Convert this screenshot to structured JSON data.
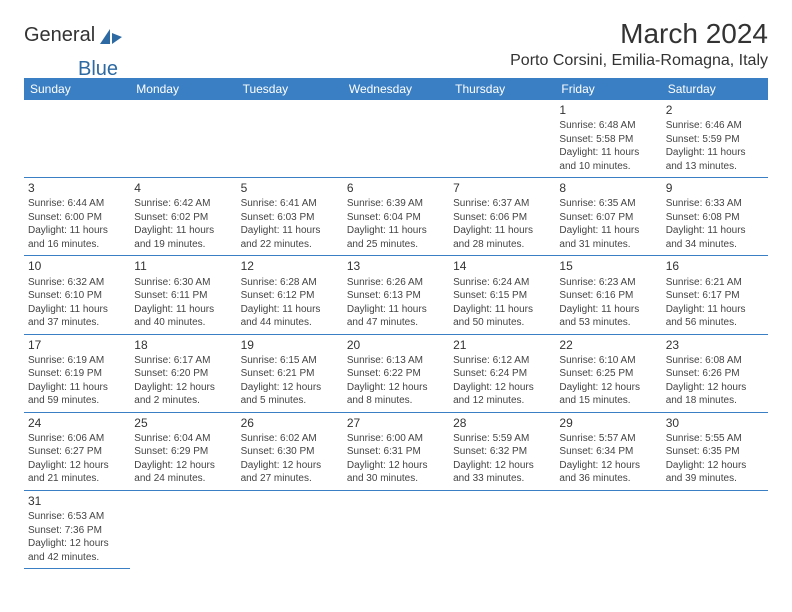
{
  "logo": {
    "text_general": "General",
    "text_blue": "Blue"
  },
  "header": {
    "month_title": "March 2024",
    "location": "Porto Corsini, Emilia-Romagna, Italy"
  },
  "colors": {
    "header_bg": "#3a7fc4",
    "header_fg": "#ffffff",
    "border": "#3a7fc4",
    "text": "#444444",
    "title": "#333333",
    "logo_blue": "#2d6aa3"
  },
  "weekdays": [
    "Sunday",
    "Monday",
    "Tuesday",
    "Wednesday",
    "Thursday",
    "Friday",
    "Saturday"
  ],
  "weeks": [
    [
      null,
      null,
      null,
      null,
      null,
      {
        "day": "1",
        "sunrise": "Sunrise: 6:48 AM",
        "sunset": "Sunset: 5:58 PM",
        "dl1": "Daylight: 11 hours",
        "dl2": "and 10 minutes."
      },
      {
        "day": "2",
        "sunrise": "Sunrise: 6:46 AM",
        "sunset": "Sunset: 5:59 PM",
        "dl1": "Daylight: 11 hours",
        "dl2": "and 13 minutes."
      }
    ],
    [
      {
        "day": "3",
        "sunrise": "Sunrise: 6:44 AM",
        "sunset": "Sunset: 6:00 PM",
        "dl1": "Daylight: 11 hours",
        "dl2": "and 16 minutes."
      },
      {
        "day": "4",
        "sunrise": "Sunrise: 6:42 AM",
        "sunset": "Sunset: 6:02 PM",
        "dl1": "Daylight: 11 hours",
        "dl2": "and 19 minutes."
      },
      {
        "day": "5",
        "sunrise": "Sunrise: 6:41 AM",
        "sunset": "Sunset: 6:03 PM",
        "dl1": "Daylight: 11 hours",
        "dl2": "and 22 minutes."
      },
      {
        "day": "6",
        "sunrise": "Sunrise: 6:39 AM",
        "sunset": "Sunset: 6:04 PM",
        "dl1": "Daylight: 11 hours",
        "dl2": "and 25 minutes."
      },
      {
        "day": "7",
        "sunrise": "Sunrise: 6:37 AM",
        "sunset": "Sunset: 6:06 PM",
        "dl1": "Daylight: 11 hours",
        "dl2": "and 28 minutes."
      },
      {
        "day": "8",
        "sunrise": "Sunrise: 6:35 AM",
        "sunset": "Sunset: 6:07 PM",
        "dl1": "Daylight: 11 hours",
        "dl2": "and 31 minutes."
      },
      {
        "day": "9",
        "sunrise": "Sunrise: 6:33 AM",
        "sunset": "Sunset: 6:08 PM",
        "dl1": "Daylight: 11 hours",
        "dl2": "and 34 minutes."
      }
    ],
    [
      {
        "day": "10",
        "sunrise": "Sunrise: 6:32 AM",
        "sunset": "Sunset: 6:10 PM",
        "dl1": "Daylight: 11 hours",
        "dl2": "and 37 minutes."
      },
      {
        "day": "11",
        "sunrise": "Sunrise: 6:30 AM",
        "sunset": "Sunset: 6:11 PM",
        "dl1": "Daylight: 11 hours",
        "dl2": "and 40 minutes."
      },
      {
        "day": "12",
        "sunrise": "Sunrise: 6:28 AM",
        "sunset": "Sunset: 6:12 PM",
        "dl1": "Daylight: 11 hours",
        "dl2": "and 44 minutes."
      },
      {
        "day": "13",
        "sunrise": "Sunrise: 6:26 AM",
        "sunset": "Sunset: 6:13 PM",
        "dl1": "Daylight: 11 hours",
        "dl2": "and 47 minutes."
      },
      {
        "day": "14",
        "sunrise": "Sunrise: 6:24 AM",
        "sunset": "Sunset: 6:15 PM",
        "dl1": "Daylight: 11 hours",
        "dl2": "and 50 minutes."
      },
      {
        "day": "15",
        "sunrise": "Sunrise: 6:23 AM",
        "sunset": "Sunset: 6:16 PM",
        "dl1": "Daylight: 11 hours",
        "dl2": "and 53 minutes."
      },
      {
        "day": "16",
        "sunrise": "Sunrise: 6:21 AM",
        "sunset": "Sunset: 6:17 PM",
        "dl1": "Daylight: 11 hours",
        "dl2": "and 56 minutes."
      }
    ],
    [
      {
        "day": "17",
        "sunrise": "Sunrise: 6:19 AM",
        "sunset": "Sunset: 6:19 PM",
        "dl1": "Daylight: 11 hours",
        "dl2": "and 59 minutes."
      },
      {
        "day": "18",
        "sunrise": "Sunrise: 6:17 AM",
        "sunset": "Sunset: 6:20 PM",
        "dl1": "Daylight: 12 hours",
        "dl2": "and 2 minutes."
      },
      {
        "day": "19",
        "sunrise": "Sunrise: 6:15 AM",
        "sunset": "Sunset: 6:21 PM",
        "dl1": "Daylight: 12 hours",
        "dl2": "and 5 minutes."
      },
      {
        "day": "20",
        "sunrise": "Sunrise: 6:13 AM",
        "sunset": "Sunset: 6:22 PM",
        "dl1": "Daylight: 12 hours",
        "dl2": "and 8 minutes."
      },
      {
        "day": "21",
        "sunrise": "Sunrise: 6:12 AM",
        "sunset": "Sunset: 6:24 PM",
        "dl1": "Daylight: 12 hours",
        "dl2": "and 12 minutes."
      },
      {
        "day": "22",
        "sunrise": "Sunrise: 6:10 AM",
        "sunset": "Sunset: 6:25 PM",
        "dl1": "Daylight: 12 hours",
        "dl2": "and 15 minutes."
      },
      {
        "day": "23",
        "sunrise": "Sunrise: 6:08 AM",
        "sunset": "Sunset: 6:26 PM",
        "dl1": "Daylight: 12 hours",
        "dl2": "and 18 minutes."
      }
    ],
    [
      {
        "day": "24",
        "sunrise": "Sunrise: 6:06 AM",
        "sunset": "Sunset: 6:27 PM",
        "dl1": "Daylight: 12 hours",
        "dl2": "and 21 minutes."
      },
      {
        "day": "25",
        "sunrise": "Sunrise: 6:04 AM",
        "sunset": "Sunset: 6:29 PM",
        "dl1": "Daylight: 12 hours",
        "dl2": "and 24 minutes."
      },
      {
        "day": "26",
        "sunrise": "Sunrise: 6:02 AM",
        "sunset": "Sunset: 6:30 PM",
        "dl1": "Daylight: 12 hours",
        "dl2": "and 27 minutes."
      },
      {
        "day": "27",
        "sunrise": "Sunrise: 6:00 AM",
        "sunset": "Sunset: 6:31 PM",
        "dl1": "Daylight: 12 hours",
        "dl2": "and 30 minutes."
      },
      {
        "day": "28",
        "sunrise": "Sunrise: 5:59 AM",
        "sunset": "Sunset: 6:32 PM",
        "dl1": "Daylight: 12 hours",
        "dl2": "and 33 minutes."
      },
      {
        "day": "29",
        "sunrise": "Sunrise: 5:57 AM",
        "sunset": "Sunset: 6:34 PM",
        "dl1": "Daylight: 12 hours",
        "dl2": "and 36 minutes."
      },
      {
        "day": "30",
        "sunrise": "Sunrise: 5:55 AM",
        "sunset": "Sunset: 6:35 PM",
        "dl1": "Daylight: 12 hours",
        "dl2": "and 39 minutes."
      }
    ],
    [
      {
        "day": "31",
        "sunrise": "Sunrise: 6:53 AM",
        "sunset": "Sunset: 7:36 PM",
        "dl1": "Daylight: 12 hours",
        "dl2": "and 42 minutes."
      },
      null,
      null,
      null,
      null,
      null,
      null
    ]
  ]
}
